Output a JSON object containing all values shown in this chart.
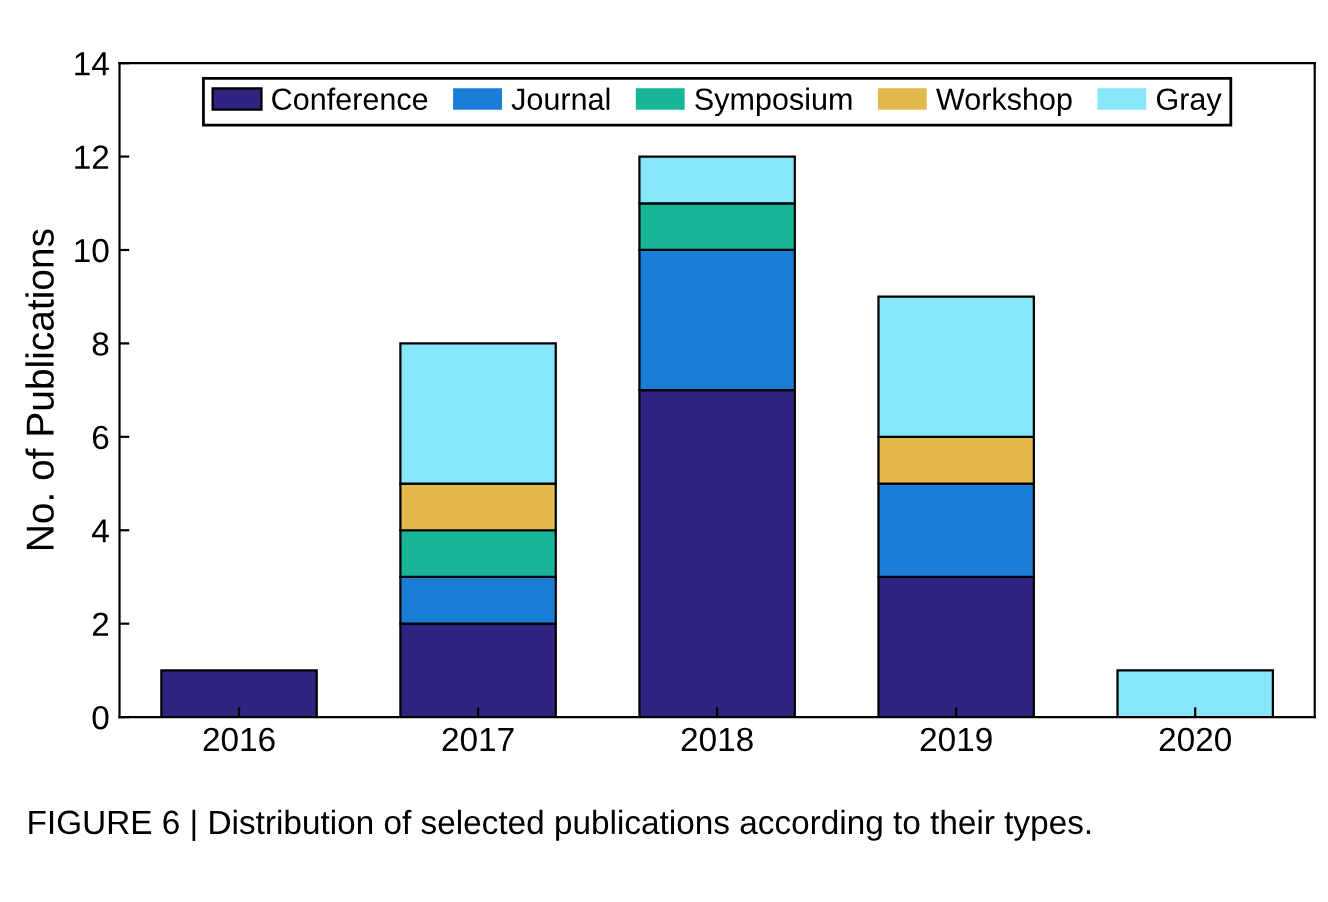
{
  "chart_data": {
    "type": "bar",
    "stacked": true,
    "ylabel": "No. of Publications",
    "categories": [
      "2016",
      "2017",
      "2018",
      "2019",
      "2020"
    ],
    "series": [
      {
        "name": "Conference",
        "color": "#2e2482",
        "values": [
          1,
          2,
          7,
          3,
          0
        ]
      },
      {
        "name": "Journal",
        "color": "#1a7ed6",
        "values": [
          0,
          1,
          3,
          2,
          0
        ]
      },
      {
        "name": "Symposium",
        "color": "#17b697",
        "values": [
          0,
          1,
          1,
          0,
          0
        ]
      },
      {
        "name": "Workshop",
        "color": "#e4b94b",
        "values": [
          0,
          1,
          0,
          1,
          0
        ]
      },
      {
        "name": "Gray",
        "color": "#87e6f8",
        "values": [
          0,
          3,
          1,
          3,
          1
        ]
      }
    ],
    "ylim": [
      0,
      14
    ],
    "yticks": [
      0,
      2,
      4,
      6,
      8,
      10,
      12,
      14
    ],
    "grid": false,
    "legend": "top",
    "annotations": [
      "FIGURE 6 | Distribution of selected publications according to their types."
    ]
  }
}
